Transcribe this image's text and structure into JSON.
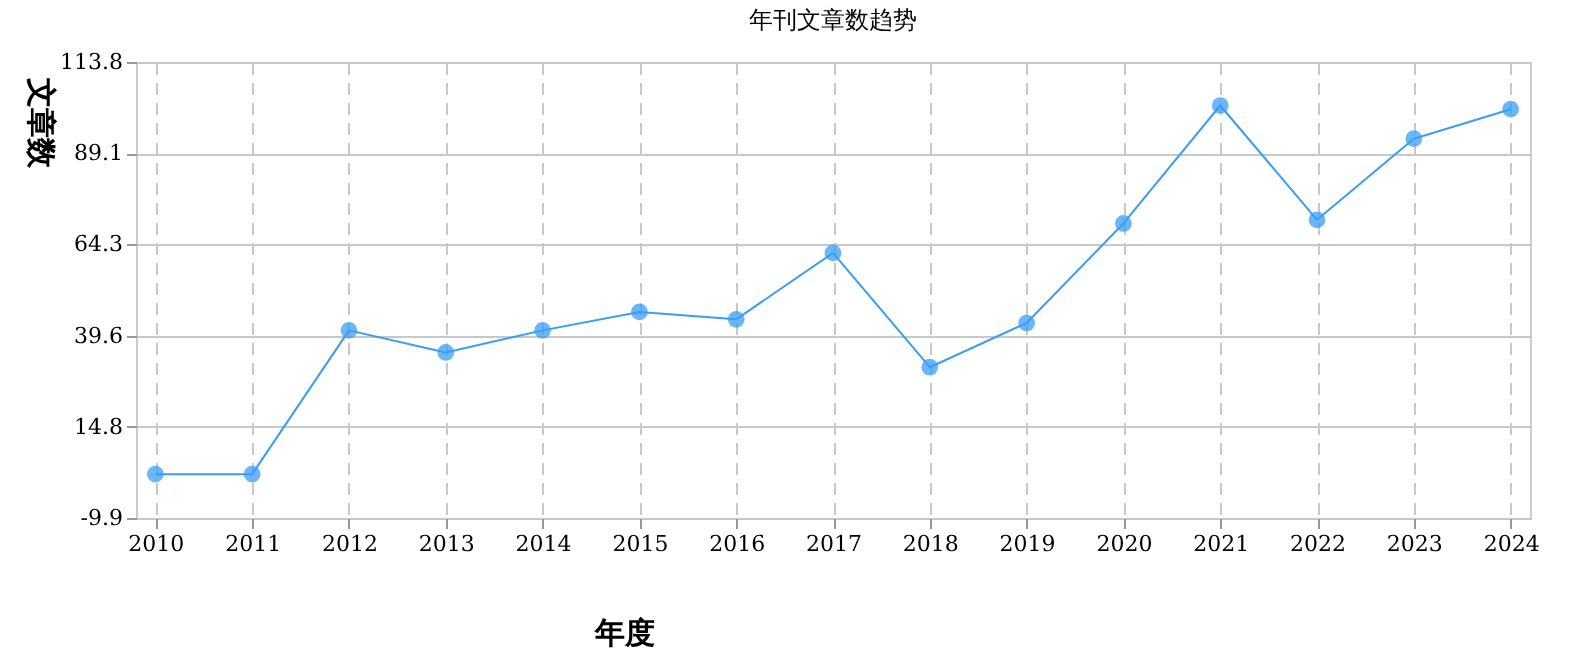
{
  "chart_data": {
    "type": "line",
    "title": "年刊文章数趋势",
    "xlabel": "年度",
    "ylabel": "文章数",
    "categories": [
      "2010",
      "2011",
      "2012",
      "2013",
      "2014",
      "2015",
      "2016",
      "2017",
      "2018",
      "2019",
      "2020",
      "2021",
      "2022",
      "2023",
      "2024"
    ],
    "series": [
      {
        "color": "#3a9df5",
        "values": [
          2,
          2,
          41,
          35,
          41,
          46,
          44,
          62,
          31,
          43,
          70,
          102,
          71,
          93,
          101
        ]
      }
    ],
    "ylim": [
      -9.9,
      113.8
    ],
    "yticks": [
      -9.9,
      14.8,
      39.6,
      64.3,
      89.1,
      113.8
    ],
    "grid": true,
    "marker": "circle",
    "line_style": "solid"
  }
}
